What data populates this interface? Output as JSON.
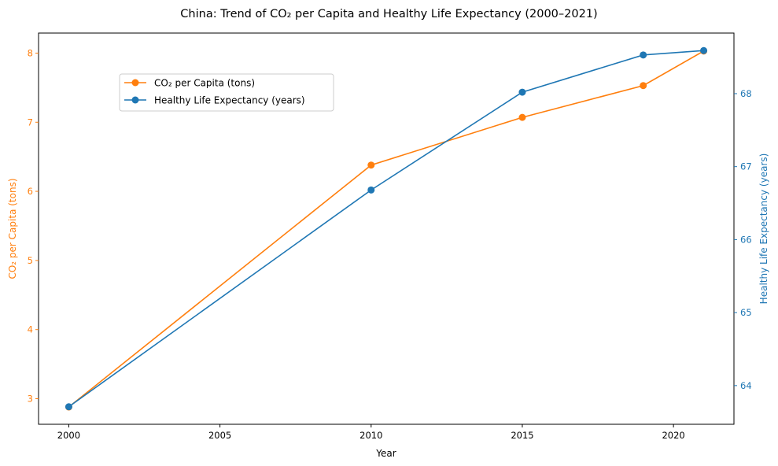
{
  "chart_data": {
    "type": "line",
    "title": "China: Trend of CO₂ per Capita and Healthy Life Expectancy (2000–2021)",
    "xlabel": "Year",
    "x": [
      2000,
      2010,
      2015,
      2019,
      2021
    ],
    "xlim": [
      1999,
      2022
    ],
    "xticks": [
      2000,
      2005,
      2010,
      2015,
      2020
    ],
    "left_axis": {
      "label": "CO₂ per Capita (tons)",
      "color": "#ff7f0e",
      "ylim": [
        2.63,
        8.29
      ],
      "ticks": [
        3,
        4,
        5,
        6,
        7,
        8
      ]
    },
    "right_axis": {
      "label": "Healthy Life Expectancy (years)",
      "color": "#1f77b4",
      "ylim": [
        63.47,
        68.83
      ],
      "ticks": [
        64,
        65,
        66,
        67,
        68
      ]
    },
    "series": [
      {
        "name": "CO₂ per Capita (tons)",
        "axis": "left",
        "color": "#ff7f0e",
        "values": [
          2.88,
          6.38,
          7.07,
          7.53,
          8.03
        ]
      },
      {
        "name": "Healthy Life Expectancy (years)",
        "axis": "right",
        "color": "#1f77b4",
        "values": [
          63.71,
          66.68,
          68.02,
          68.53,
          68.59
        ]
      }
    ],
    "legend": "upper-left",
    "grid": false
  }
}
